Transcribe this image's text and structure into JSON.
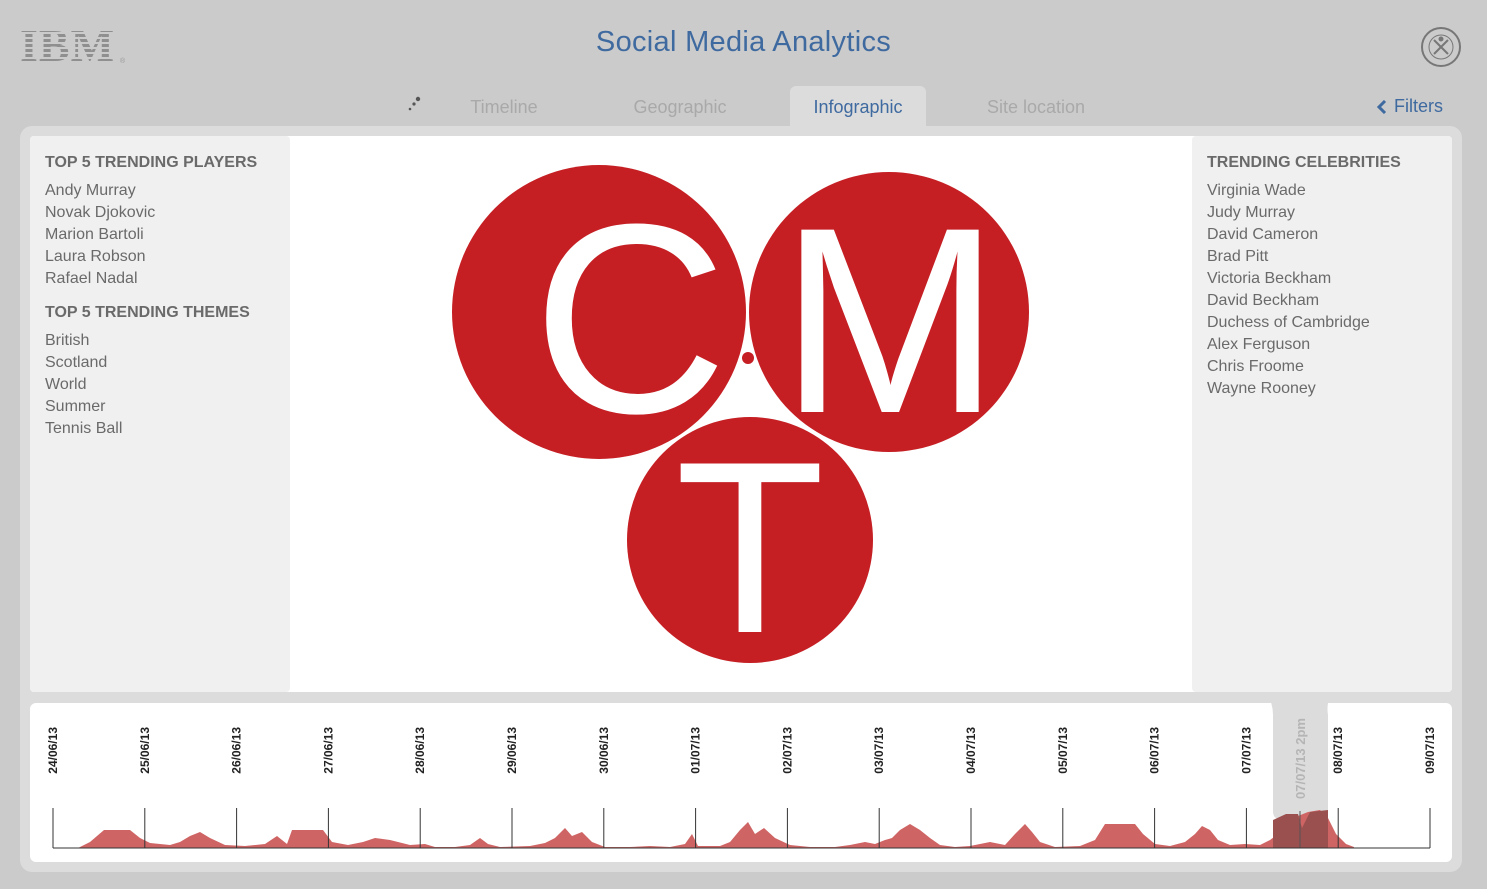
{
  "header": {
    "logo_text": "IBM",
    "logo_reg": "®",
    "title": "Social Media Analytics",
    "emblem_icon": "wimbledon-emblem-icon"
  },
  "nav": {
    "tabs": [
      {
        "label": "Timeline",
        "active": false
      },
      {
        "label": "Geographic",
        "active": false
      },
      {
        "label": "Infographic",
        "active": true
      },
      {
        "label": "Site location",
        "active": false
      }
    ],
    "filters_label": "Filters"
  },
  "left_panel": {
    "players_title": "TOP 5 TRENDING PLAYERS",
    "players": [
      "Andy Murray",
      "Novak Djokovic",
      "Marion Bartoli",
      "Laura Robson",
      "Rafael Nadal"
    ],
    "themes_title": "TOP 5 TRENDING THEMES",
    "themes": [
      "British",
      "Scotland",
      "World",
      "Summer",
      "Tennis Ball"
    ]
  },
  "right_panel": {
    "title": "TRENDING CELEBRITIES",
    "celebrities": [
      "Virginia Wade",
      "Judy Murray",
      "David Cameron",
      "Brad Pitt",
      "Victoria Beckham",
      "David Beckham",
      "Duchess of Cambridge",
      "Alex Ferguson",
      "Chris Froome",
      "Wayne Rooney"
    ]
  },
  "infographic": {
    "letters": [
      "C",
      "M",
      "T"
    ],
    "dot": "."
  },
  "timeline": {
    "dates": [
      "24/06/13",
      "25/06/13",
      "26/06/13",
      "27/06/13",
      "28/06/13",
      "29/06/13",
      "30/06/13",
      "01/07/13",
      "02/07/13",
      "03/07/13",
      "04/07/13",
      "05/07/13",
      "06/07/13",
      "07/07/13",
      "08/07/13",
      "09/07/13"
    ],
    "selected_label": "07/07/13 2pm",
    "colors": {
      "area": "#cf6464",
      "selected_area": "#9b5050",
      "accent": "#c62127"
    }
  }
}
